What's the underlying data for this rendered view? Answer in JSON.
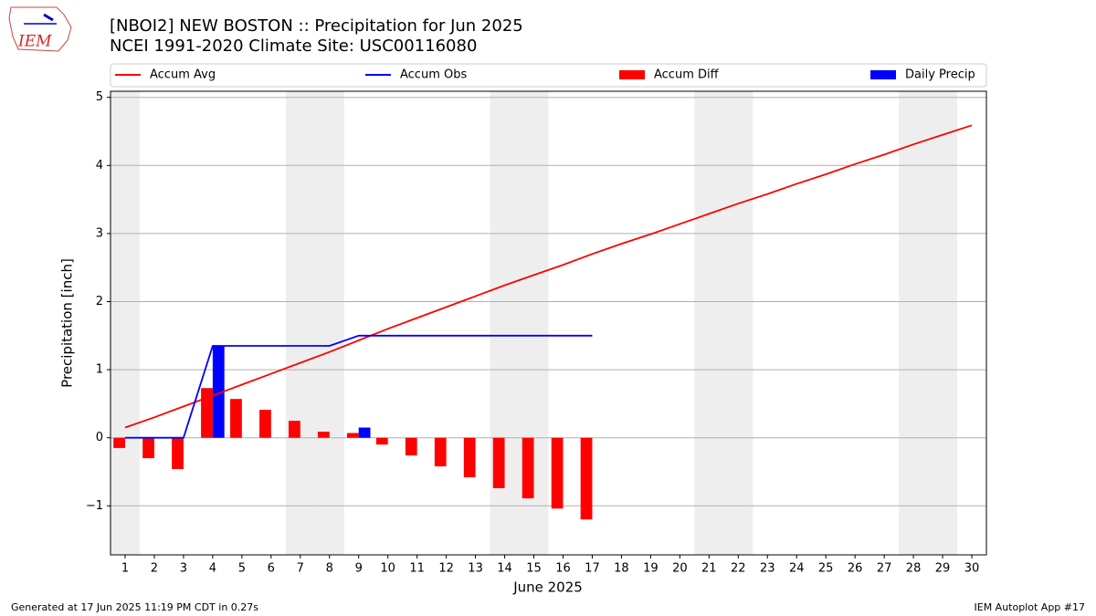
{
  "chart_data": {
    "type": "line",
    "title": "[NBOI2] NEW BOSTON :: Precipitation for Jun 2025",
    "subtitle": "NCEI 1991-2020 Climate Site: USC00116080",
    "logo_text": "IEM",
    "ylabel": "Precipitation [inch]",
    "xlabel": "June 2025",
    "footer_left": "Generated at 17 Jun 2025 11:19 PM CDT in 0.27s",
    "footer_right": "IEM Autoplot App #17",
    "x": [
      1,
      2,
      3,
      4,
      5,
      6,
      7,
      8,
      9,
      10,
      11,
      12,
      13,
      14,
      15,
      16,
      17,
      18,
      19,
      20,
      21,
      22,
      23,
      24,
      25,
      26,
      27,
      28,
      29,
      30
    ],
    "xlim": [
      0.5,
      30.5
    ],
    "xticks": [
      1,
      2,
      3,
      4,
      5,
      6,
      7,
      8,
      9,
      10,
      11,
      12,
      13,
      14,
      15,
      16,
      17,
      18,
      19,
      20,
      21,
      22,
      23,
      24,
      25,
      26,
      27,
      28,
      29,
      30
    ],
    "ylim": [
      -1.72,
      5.09
    ],
    "yticks": [
      {
        "value": -1,
        "label": "−1"
      },
      0,
      1,
      2,
      3,
      4,
      5
    ],
    "grid": true,
    "weekend_days": [
      1,
      7,
      8,
      14,
      15,
      21,
      22,
      28,
      29
    ],
    "weekend_color": "#eeeeee",
    "series": [
      {
        "name": "Accum Avg",
        "kind": "line",
        "color": "#ff0000",
        "values": [
          0.15,
          0.3,
          0.46,
          0.62,
          0.78,
          0.94,
          1.1,
          1.26,
          1.43,
          1.6,
          1.76,
          1.92,
          2.08,
          2.24,
          2.39,
          2.54,
          2.7,
          2.85,
          2.99,
          3.14,
          3.29,
          3.44,
          3.58,
          3.73,
          3.87,
          4.02,
          4.16,
          4.31,
          4.45,
          4.59
        ]
      },
      {
        "name": "Accum Obs",
        "kind": "line",
        "color": "#0000ff",
        "values": [
          0,
          0,
          0,
          1.35,
          1.35,
          1.35,
          1.35,
          1.35,
          1.5,
          1.5,
          1.5,
          1.5,
          1.5,
          1.5,
          1.5,
          1.5,
          1.5,
          null,
          null,
          null,
          null,
          null,
          null,
          null,
          null,
          null,
          null,
          null,
          null,
          null
        ]
      },
      {
        "name": "Accum Diff",
        "kind": "bar",
        "color": "#ff0000",
        "values": [
          -0.15,
          -0.3,
          -0.46,
          0.73,
          0.57,
          0.41,
          0.25,
          0.09,
          0.07,
          -0.1,
          -0.26,
          -0.42,
          -0.58,
          -0.74,
          -0.89,
          -1.04,
          -1.2,
          null,
          null,
          null,
          null,
          null,
          null,
          null,
          null,
          null,
          null,
          null,
          null,
          null
        ]
      },
      {
        "name": "Daily Precip",
        "kind": "bar",
        "color": "#0000ff",
        "values": [
          0,
          0,
          0,
          1.35,
          0,
          0,
          0,
          0,
          0.15,
          0,
          0,
          0,
          0,
          0,
          0,
          0,
          0,
          null,
          null,
          null,
          null,
          null,
          null,
          null,
          null,
          null,
          null,
          null,
          null,
          null
        ]
      }
    ]
  }
}
